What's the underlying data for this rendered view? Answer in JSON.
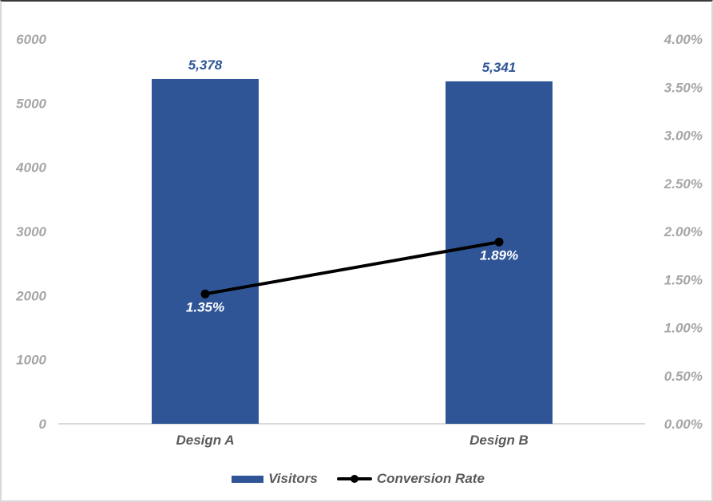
{
  "chart_data": {
    "type": "bar+line",
    "title": "",
    "categories": [
      "Design A",
      "Design B"
    ],
    "series": [
      {
        "name": "Visitors",
        "type": "bar",
        "axis": "left",
        "values": [
          5378,
          5341
        ],
        "labels": [
          "5,378",
          "5,341"
        ],
        "color": "#2f5597"
      },
      {
        "name": "Conversion Rate",
        "type": "line",
        "axis": "right",
        "values": [
          0.0135,
          0.0189
        ],
        "labels": [
          "1.35%",
          "1.89%"
        ],
        "color": "#000000"
      }
    ],
    "y_left": {
      "range": [
        0,
        6000
      ],
      "ticks": [
        "0",
        "1000",
        "2000",
        "3000",
        "4000",
        "5000",
        "6000"
      ]
    },
    "y_right": {
      "range": [
        0,
        0.04
      ],
      "ticks": [
        "0.00%",
        "0.50%",
        "1.00%",
        "1.50%",
        "2.00%",
        "2.50%",
        "3.00%",
        "3.50%",
        "4.00%"
      ]
    },
    "xlabel": "",
    "ylabel": "",
    "grid": false,
    "legend_position": "bottom"
  },
  "legend": {
    "visitors": "Visitors",
    "conversion": "Conversion Rate"
  }
}
